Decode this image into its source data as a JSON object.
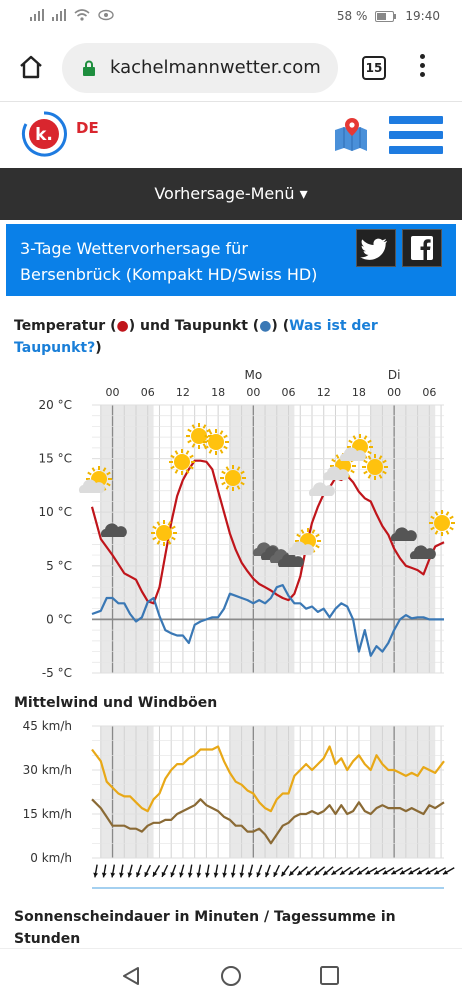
{
  "status": {
    "battery": "58 %",
    "time": "19:40"
  },
  "browser": {
    "url": "kachelmannwetter.com",
    "tab_count": "15"
  },
  "site": {
    "lang": "DE"
  },
  "menu": {
    "label": "Vorhersage-Menü ▾"
  },
  "title": {
    "text": "3-Tage Wettervorhersage für Bersenbrück (Kompakt HD/Swiss HD)"
  },
  "temp_section": {
    "heading_a": "Temperatur (",
    "heading_b": ") und Taupunkt (",
    "heading_c": ") (",
    "link": "Was ist der Taupunkt?",
    "heading_d": ")"
  },
  "wind_section": {
    "heading": "Mittelwind und Windböen"
  },
  "sun_section": {
    "heading": "Sonnenscheindauer in Minuten / Tagessumme in Stunden"
  },
  "colors": {
    "temp": "#c0151b",
    "dew": "#3a78b5",
    "gust": "#e8a817",
    "wind": "#8a6a35",
    "accent": "#1e7be0"
  },
  "chart_data": [
    {
      "type": "line",
      "title": "Temperatur und Taupunkt",
      "day_labels": [
        {
          "label": "Mo",
          "h": 24
        },
        {
          "label": "Di",
          "h": 48
        }
      ],
      "hour_ticks": [
        {
          "label": "00",
          "h": 0
        },
        {
          "label": "06",
          "h": 6
        },
        {
          "label": "12",
          "h": 12
        },
        {
          "label": "18",
          "h": 18
        },
        {
          "label": "00",
          "h": 24
        },
        {
          "label": "06",
          "h": 30
        },
        {
          "label": "12",
          "h": 36
        },
        {
          "label": "18",
          "h": 42
        },
        {
          "label": "00",
          "h": 48
        },
        {
          "label": "06",
          "h": 54
        }
      ],
      "y_ticks": [
        "20 °C",
        "15 °C",
        "10 °C",
        "5 °C",
        "0 °C",
        "-5 °C"
      ],
      "ylim": [
        -5,
        20
      ],
      "xlim": [
        -3.5,
        56.5
      ],
      "night_bands": [
        [
          -2,
          7
        ],
        [
          20,
          31
        ],
        [
          44,
          55
        ]
      ],
      "series": [
        {
          "name": "Temperatur",
          "hours": [
            -3.5,
            -2,
            0,
            2,
            4,
            5,
            6,
            7,
            8,
            9,
            10,
            11,
            12,
            13,
            14,
            15,
            16,
            17,
            18,
            19,
            20,
            21,
            22,
            23,
            24,
            25,
            26,
            27,
            28,
            29,
            30,
            31,
            32,
            33,
            34,
            35,
            36,
            37,
            38,
            39,
            40,
            41,
            42,
            43,
            44,
            45,
            46,
            47,
            48,
            49,
            50,
            51,
            52,
            53,
            54,
            55,
            56.5
          ],
          "values": [
            10.5,
            7.5,
            6,
            4.3,
            3.7,
            2.6,
            1.7,
            1.5,
            3,
            6,
            9,
            11.5,
            13,
            14,
            14.8,
            14.8,
            14.7,
            14,
            12,
            10,
            8,
            6.5,
            5.3,
            4.5,
            3.8,
            3.3,
            3,
            2.7,
            2.3,
            2,
            1.8,
            2.4,
            4,
            6.7,
            9,
            10.5,
            11.7,
            12.3,
            13.2,
            13,
            13.4,
            12.8,
            11.9,
            11.3,
            11,
            9.8,
            8.7,
            7.9,
            6.6,
            5.7,
            5,
            4.8,
            4.6,
            4.2,
            5.6,
            6.8,
            7.2
          ]
        },
        {
          "name": "Taupunkt",
          "hours": [
            -3.5,
            -2,
            -1,
            0,
            1,
            2,
            3,
            4,
            5,
            6,
            7,
            8,
            9,
            10,
            11,
            12,
            13,
            14,
            15,
            16,
            17,
            18,
            19,
            20,
            21,
            22,
            23,
            24,
            25,
            26,
            27,
            28,
            29,
            30,
            31,
            32,
            33,
            34,
            35,
            36,
            37,
            38,
            39,
            40,
            41,
            42,
            43,
            44,
            45,
            46,
            47,
            48,
            49,
            50,
            51,
            52,
            53,
            54,
            55,
            56.5
          ],
          "values": [
            0.5,
            0.8,
            2,
            2,
            1.5,
            1.5,
            0.5,
            -0.2,
            0.2,
            1.6,
            2,
            0.3,
            -1,
            -1.3,
            -1.5,
            -1.5,
            -2.2,
            -0.5,
            -0.2,
            0,
            0.2,
            0.2,
            1,
            2.4,
            2.2,
            2,
            1.8,
            1.5,
            1.8,
            1.5,
            2,
            3,
            3.2,
            2.2,
            1.5,
            1.5,
            1,
            1.2,
            0.7,
            1,
            0.2,
            1,
            1.5,
            1.2,
            0,
            -3,
            -1,
            -3.4,
            -2.5,
            -3,
            -2.2,
            -1,
            0,
            0.4,
            0.1,
            0.2,
            0.2,
            0,
            0,
            0
          ]
        }
      ]
    },
    {
      "type": "line",
      "title": "Mittelwind und Windböen",
      "y_ticks": [
        "45 km/h",
        "30 km/h",
        "15 km/h",
        "0 km/h"
      ],
      "ylim": [
        0,
        45
      ],
      "xlim": [
        -3.5,
        56.5
      ],
      "night_bands": [
        [
          -2,
          7
        ],
        [
          20,
          31
        ],
        [
          44,
          55
        ]
      ],
      "series": [
        {
          "name": "Windböen",
          "hours": [
            -3.5,
            -2,
            -1,
            0,
            1,
            2,
            3,
            4,
            5,
            6,
            7,
            8,
            9,
            10,
            11,
            12,
            13,
            14,
            15,
            16,
            17,
            18,
            19,
            20,
            21,
            22,
            23,
            24,
            25,
            26,
            27,
            28,
            29,
            30,
            31,
            32,
            33,
            34,
            35,
            36,
            37,
            38,
            39,
            40,
            41,
            42,
            43,
            44,
            45,
            46,
            47,
            48,
            49,
            50,
            51,
            52,
            53,
            54,
            55,
            56.5
          ],
          "values": [
            37,
            33,
            26,
            24,
            22,
            21,
            21,
            19,
            17,
            16,
            20,
            22,
            27,
            30,
            32,
            32,
            34,
            35,
            37,
            37,
            37,
            38,
            33,
            29,
            26,
            25,
            23,
            22,
            19,
            17,
            16,
            20,
            22,
            22,
            28,
            30,
            32,
            30,
            32,
            34,
            38,
            32,
            34,
            30,
            33,
            35,
            32,
            30,
            35,
            32,
            30,
            30,
            29,
            28,
            29,
            28,
            31,
            30,
            29,
            33
          ]
        },
        {
          "name": "Mittelwind",
          "hours": [
            -3.5,
            -2,
            -1,
            0,
            1,
            2,
            3,
            4,
            5,
            6,
            7,
            8,
            9,
            10,
            11,
            12,
            13,
            14,
            15,
            16,
            17,
            18,
            19,
            20,
            21,
            22,
            23,
            24,
            25,
            26,
            27,
            28,
            29,
            30,
            31,
            32,
            33,
            34,
            35,
            36,
            37,
            38,
            39,
            40,
            41,
            42,
            43,
            44,
            45,
            46,
            47,
            48,
            49,
            50,
            51,
            52,
            53,
            54,
            55,
            56.5
          ],
          "values": [
            20,
            17,
            14,
            11,
            11,
            11,
            10,
            10,
            9,
            11,
            12,
            12,
            13,
            13,
            15,
            16,
            17,
            18,
            20,
            18,
            17,
            16,
            14,
            13,
            11,
            11,
            9,
            9,
            10,
            8,
            5,
            8,
            11,
            12,
            14,
            15,
            15,
            16,
            15,
            16,
            18,
            15,
            18,
            15,
            16,
            19,
            16,
            15,
            17,
            18,
            17,
            17,
            17,
            16,
            17,
            16,
            15,
            18,
            17,
            19
          ]
        }
      ]
    }
  ]
}
